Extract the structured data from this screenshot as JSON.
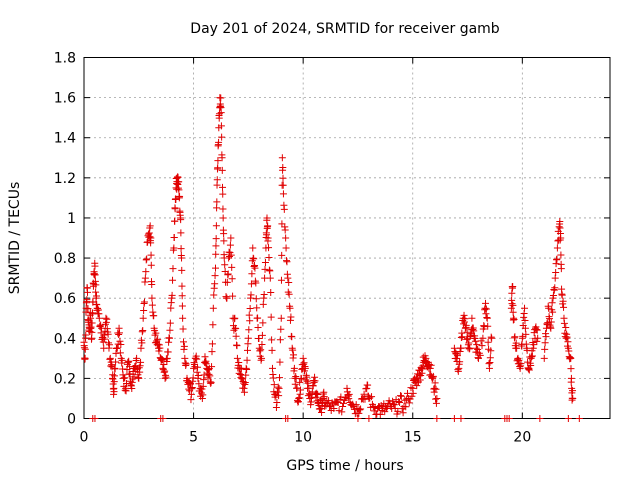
{
  "chart_data": {
    "type": "scatter",
    "title": "Day 201 of 2024, SRMTID for receiver gamb",
    "xlabel": "GPS time / hours",
    "ylabel": "SRMTID / TECUs",
    "xlim": [
      0,
      24
    ],
    "ylim": [
      0,
      1.8
    ],
    "x_ticks": [
      0,
      5,
      10,
      15,
      20
    ],
    "x_tick_labels": [
      "0",
      "5",
      "10",
      "15",
      "20"
    ],
    "y_ticks": [
      0,
      0.2,
      0.4,
      0.6,
      0.8,
      1,
      1.2,
      1.4,
      1.6,
      1.8
    ],
    "y_tick_labels": [
      "0",
      "0.2",
      "0.4",
      "0.6",
      "0.8",
      "1",
      "1.2",
      "1.4",
      "1.6",
      "1.8"
    ],
    "grid": true,
    "marker": "+",
    "series": [
      {
        "name": "SRMTID",
        "color": "#e00000",
        "points": [
          [
            0.0,
            0.38
          ],
          [
            0.05,
            0.3
          ],
          [
            0.1,
            0.55
          ],
          [
            0.15,
            0.65
          ],
          [
            0.2,
            0.48
          ],
          [
            0.25,
            0.45
          ],
          [
            0.3,
            0.5
          ],
          [
            0.35,
            0.4
          ],
          [
            0.4,
            0.58
          ],
          [
            0.45,
            0.72
          ],
          [
            0.5,
            0.76
          ],
          [
            0.55,
            0.6
          ],
          [
            0.6,
            0.55
          ],
          [
            0.7,
            0.5
          ],
          [
            0.8,
            0.45
          ],
          [
            0.9,
            0.35
          ],
          [
            1.0,
            0.5
          ],
          [
            1.1,
            0.42
          ],
          [
            1.2,
            0.3
          ],
          [
            1.3,
            0.2
          ],
          [
            1.35,
            0.12
          ],
          [
            1.4,
            0.25
          ],
          [
            1.5,
            0.35
          ],
          [
            1.6,
            0.45
          ],
          [
            1.7,
            0.3
          ],
          [
            1.8,
            0.2
          ],
          [
            1.9,
            0.15
          ],
          [
            2.0,
            0.28
          ],
          [
            2.1,
            0.22
          ],
          [
            2.2,
            0.18
          ],
          [
            2.3,
            0.25
          ],
          [
            2.4,
            0.3
          ],
          [
            2.5,
            0.2
          ],
          [
            2.6,
            0.35
          ],
          [
            2.7,
            0.5
          ],
          [
            2.8,
            0.7
          ],
          [
            2.9,
            0.88
          ],
          [
            3.0,
            0.95
          ],
          [
            3.05,
            0.9
          ],
          [
            3.1,
            0.6
          ],
          [
            3.2,
            0.45
          ],
          [
            3.3,
            0.38
          ],
          [
            3.4,
            0.35
          ],
          [
            3.5,
            0.3
          ],
          [
            3.6,
            0.25
          ],
          [
            3.7,
            0.2
          ],
          [
            3.8,
            0.3
          ],
          [
            3.9,
            0.4
          ],
          [
            4.0,
            0.6
          ],
          [
            4.1,
            0.85
          ],
          [
            4.15,
            1.05
          ],
          [
            4.2,
            1.15
          ],
          [
            4.25,
            1.2
          ],
          [
            4.3,
            1.18
          ],
          [
            4.35,
            1.1
          ],
          [
            4.4,
            1.0
          ],
          [
            4.45,
            0.8
          ],
          [
            4.5,
            0.5
          ],
          [
            4.6,
            0.3
          ],
          [
            4.7,
            0.2
          ],
          [
            4.8,
            0.18
          ],
          [
            4.9,
            0.12
          ],
          [
            5.0,
            0.25
          ],
          [
            5.1,
            0.3
          ],
          [
            5.2,
            0.2
          ],
          [
            5.3,
            0.15
          ],
          [
            5.4,
            0.1
          ],
          [
            5.5,
            0.28
          ],
          [
            5.6,
            0.25
          ],
          [
            5.7,
            0.22
          ],
          [
            5.8,
            0.18
          ],
          [
            5.9,
            0.55
          ],
          [
            6.0,
            0.75
          ],
          [
            6.05,
            1.05
          ],
          [
            6.1,
            1.25
          ],
          [
            6.15,
            1.45
          ],
          [
            6.2,
            1.6
          ],
          [
            6.25,
            1.55
          ],
          [
            6.3,
            1.3
          ],
          [
            6.35,
            1.0
          ],
          [
            6.4,
            0.8
          ],
          [
            6.5,
            0.6
          ],
          [
            6.6,
            0.8
          ],
          [
            6.7,
            0.9
          ],
          [
            6.8,
            0.5
          ],
          [
            6.9,
            0.45
          ],
          [
            7.0,
            0.3
          ],
          [
            7.1,
            0.25
          ],
          [
            7.2,
            0.2
          ],
          [
            7.3,
            0.15
          ],
          [
            7.4,
            0.25
          ],
          [
            7.5,
            0.4
          ],
          [
            7.6,
            0.6
          ],
          [
            7.7,
            0.85
          ],
          [
            7.8,
            0.75
          ],
          [
            7.9,
            0.5
          ],
          [
            8.0,
            0.35
          ],
          [
            8.1,
            0.3
          ],
          [
            8.2,
            0.6
          ],
          [
            8.3,
            0.85
          ],
          [
            8.35,
            1.0
          ],
          [
            8.4,
            0.9
          ],
          [
            8.5,
            0.7
          ],
          [
            8.6,
            0.25
          ],
          [
            8.7,
            0.12
          ],
          [
            8.8,
            0.08
          ],
          [
            8.9,
            0.15
          ],
          [
            9.0,
            0.5
          ],
          [
            9.05,
            1.3
          ],
          [
            9.1,
            1.12
          ],
          [
            9.2,
            0.9
          ],
          [
            9.3,
            0.7
          ],
          [
            9.4,
            0.55
          ],
          [
            9.5,
            0.35
          ],
          [
            9.6,
            0.25
          ],
          [
            9.7,
            0.15
          ],
          [
            9.8,
            0.1
          ],
          [
            9.9,
            0.2
          ],
          [
            10.0,
            0.3
          ],
          [
            10.1,
            0.25
          ],
          [
            10.2,
            0.15
          ],
          [
            10.3,
            0.1
          ],
          [
            10.4,
            0.12
          ],
          [
            10.5,
            0.18
          ],
          [
            10.6,
            0.12
          ],
          [
            10.7,
            0.08
          ],
          [
            10.8,
            0.05
          ],
          [
            10.9,
            0.1
          ],
          [
            11.0,
            0.08
          ],
          [
            11.2,
            0.06
          ],
          [
            11.4,
            0.05
          ],
          [
            11.6,
            0.08
          ],
          [
            11.8,
            0.06
          ],
          [
            12.0,
            0.15
          ],
          [
            12.1,
            0.12
          ],
          [
            12.3,
            0.06
          ],
          [
            12.5,
            0.05
          ],
          [
            12.7,
            0.1
          ],
          [
            12.9,
            0.15
          ],
          [
            13.0,
            0.1
          ],
          [
            13.2,
            0.06
          ],
          [
            13.4,
            0.05
          ],
          [
            13.6,
            0.04
          ],
          [
            13.8,
            0.05
          ],
          [
            14.0,
            0.06
          ],
          [
            14.2,
            0.05
          ],
          [
            14.4,
            0.08
          ],
          [
            14.6,
            0.06
          ],
          [
            14.8,
            0.1
          ],
          [
            15.0,
            0.15
          ],
          [
            15.1,
            0.18
          ],
          [
            15.2,
            0.2
          ],
          [
            15.3,
            0.22
          ],
          [
            15.4,
            0.25
          ],
          [
            15.5,
            0.28
          ],
          [
            15.6,
            0.3
          ],
          [
            15.7,
            0.28
          ],
          [
            15.8,
            0.25
          ],
          [
            15.9,
            0.2
          ],
          [
            16.0,
            0.15
          ],
          [
            16.1,
            0.1
          ],
          [
            16.9,
            0.35
          ],
          [
            17.0,
            0.3
          ],
          [
            17.1,
            0.25
          ],
          [
            17.2,
            0.35
          ],
          [
            17.3,
            0.5
          ],
          [
            17.4,
            0.45
          ],
          [
            17.5,
            0.4
          ],
          [
            17.6,
            0.35
          ],
          [
            17.7,
            0.5
          ],
          [
            17.8,
            0.4
          ],
          [
            17.9,
            0.35
          ],
          [
            18.0,
            0.3
          ],
          [
            18.2,
            0.4
          ],
          [
            18.3,
            0.55
          ],
          [
            18.4,
            0.5
          ],
          [
            18.5,
            0.25
          ],
          [
            18.6,
            0.4
          ],
          [
            19.5,
            0.55
          ],
          [
            19.55,
            0.65
          ],
          [
            19.6,
            0.5
          ],
          [
            19.7,
            0.35
          ],
          [
            19.8,
            0.3
          ],
          [
            19.9,
            0.25
          ],
          [
            20.0,
            0.4
          ],
          [
            20.1,
            0.55
          ],
          [
            20.2,
            0.35
          ],
          [
            20.3,
            0.25
          ],
          [
            20.4,
            0.3
          ],
          [
            20.5,
            0.35
          ],
          [
            20.6,
            0.45
          ],
          [
            20.7,
            0.4
          ],
          [
            21.0,
            0.3
          ],
          [
            21.1,
            0.45
          ],
          [
            21.2,
            0.55
          ],
          [
            21.3,
            0.45
          ],
          [
            21.4,
            0.6
          ],
          [
            21.5,
            0.7
          ],
          [
            21.6,
            0.85
          ],
          [
            21.7,
            0.97
          ],
          [
            21.75,
            0.9
          ],
          [
            21.8,
            0.62
          ],
          [
            21.9,
            0.5
          ],
          [
            22.0,
            0.4
          ],
          [
            22.1,
            0.35
          ],
          [
            22.2,
            0.3
          ],
          [
            22.25,
            0.15
          ],
          [
            22.3,
            0.1
          ]
        ]
      }
    ],
    "baseline_points_x": [
      0.4,
      0.5,
      3.5,
      3.6,
      9.2,
      9.3,
      12.5,
      13.0,
      16.1,
      16.9,
      17.2,
      19.2,
      19.3,
      19.4,
      20.8,
      22.1,
      22.6
    ]
  }
}
